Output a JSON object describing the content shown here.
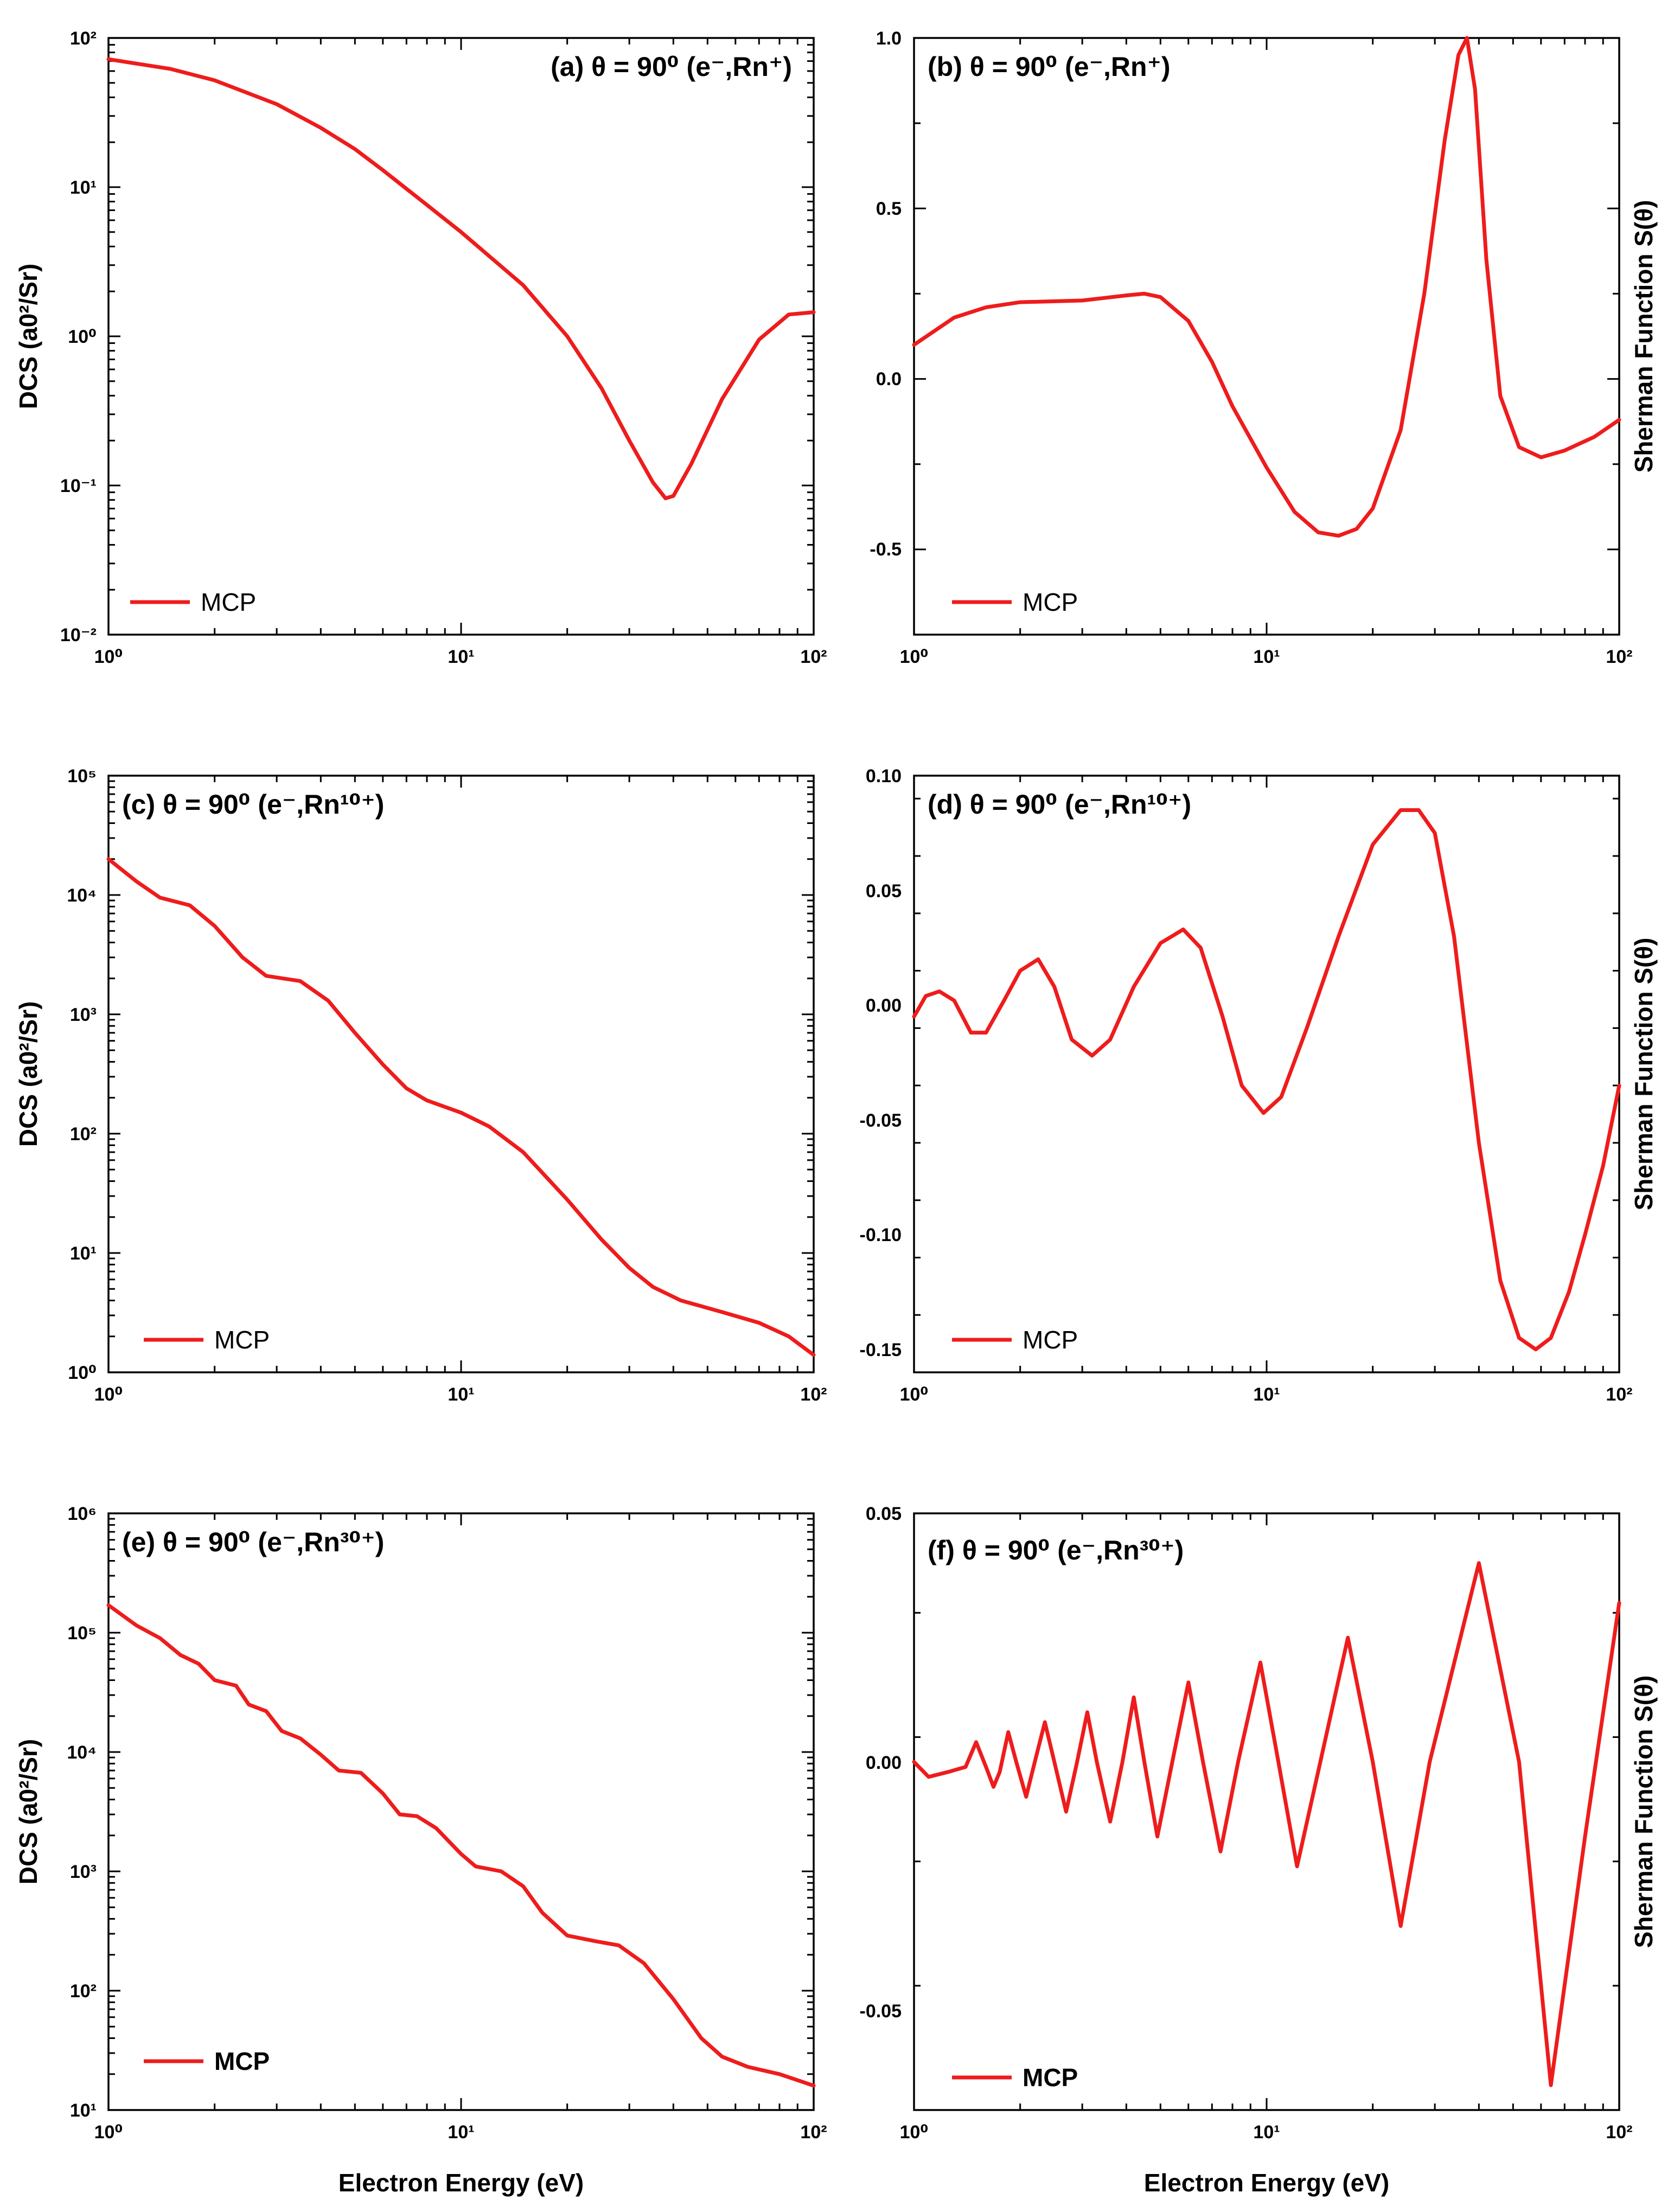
{
  "figure": {
    "x_axis_title": "Electron Energy (eV)",
    "dcs_axis_title": "DCS (a0²/Sr)",
    "sherman_axis_title": "Sherman Function S(θ)",
    "curve_color": "#ee1c1c"
  },
  "chart_data": [
    {
      "type": "line",
      "id": "a",
      "title": "(a) θ = 90⁰ (e⁻,Rn⁺)",
      "xlabel": "",
      "ylabel": "DCS (a0²/Sr)",
      "x_scale": "log",
      "y_scale": "log",
      "xlim": [
        1,
        100
      ],
      "ylim": [
        0.01,
        100
      ],
      "x_ticks": [
        1,
        10,
        100
      ],
      "x_tick_labels": [
        "10⁰",
        "10¹",
        "10²"
      ],
      "y_ticks": [
        0.01,
        0.1,
        1,
        10,
        100
      ],
      "y_tick_labels": [
        "10⁻²",
        "10⁻¹",
        "10⁰",
        "10¹",
        "10²"
      ],
      "legend": "MCP",
      "legend_position": "bottom-left",
      "series": [
        {
          "name": "MCP",
          "points": [
            [
              1,
              72
            ],
            [
              1.5,
              62
            ],
            [
              2,
              52
            ],
            [
              3,
              36
            ],
            [
              4,
              25
            ],
            [
              5,
              18
            ],
            [
              6,
              13
            ],
            [
              8,
              7.6
            ],
            [
              10,
              5.0
            ],
            [
              15,
              2.2
            ],
            [
              20,
              1.0
            ],
            [
              25,
              0.45
            ],
            [
              30,
              0.2
            ],
            [
              35,
              0.105
            ],
            [
              38,
              0.082
            ],
            [
              40,
              0.085
            ],
            [
              45,
              0.14
            ],
            [
              55,
              0.38
            ],
            [
              70,
              0.95
            ],
            [
              85,
              1.4
            ],
            [
              100,
              1.45
            ]
          ]
        }
      ]
    },
    {
      "type": "line",
      "id": "b",
      "title": "(b) θ = 90⁰ (e⁻,Rn⁺)",
      "xlabel": "",
      "ylabel": "Sherman Function S(θ)",
      "x_scale": "log",
      "y_scale": "linear",
      "xlim": [
        1,
        100
      ],
      "ylim": [
        -0.75,
        1.0
      ],
      "x_ticks": [
        1,
        10,
        100
      ],
      "x_tick_labels": [
        "10⁰",
        "10¹",
        "10²"
      ],
      "y_ticks": [
        -0.5,
        0,
        0.5,
        1.0
      ],
      "y_tick_labels": [
        "-0.5",
        "0.0",
        "0.5",
        "1.0"
      ],
      "legend": "MCP",
      "legend_position": "bottom-left",
      "series": [
        {
          "name": "MCP",
          "points": [
            [
              1,
              0.1
            ],
            [
              1.3,
              0.18
            ],
            [
              1.6,
              0.21
            ],
            [
              2,
              0.225
            ],
            [
              3,
              0.23
            ],
            [
              4,
              0.245
            ],
            [
              4.5,
              0.25
            ],
            [
              5,
              0.24
            ],
            [
              6,
              0.17
            ],
            [
              7,
              0.05
            ],
            [
              8,
              -0.08
            ],
            [
              10,
              -0.26
            ],
            [
              12,
              -0.39
            ],
            [
              14,
              -0.45
            ],
            [
              16,
              -0.46
            ],
            [
              18,
              -0.44
            ],
            [
              20,
              -0.38
            ],
            [
              24,
              -0.15
            ],
            [
              28,
              0.25
            ],
            [
              32,
              0.7
            ],
            [
              35,
              0.95
            ],
            [
              37,
              1.0
            ],
            [
              39,
              0.85
            ],
            [
              42,
              0.35
            ],
            [
              46,
              -0.05
            ],
            [
              52,
              -0.2
            ],
            [
              60,
              -0.23
            ],
            [
              70,
              -0.21
            ],
            [
              85,
              -0.17
            ],
            [
              100,
              -0.12
            ]
          ]
        }
      ]
    },
    {
      "type": "line",
      "id": "c",
      "title": "(c) θ = 90⁰ (e⁻,Rn¹⁰⁺)",
      "xlabel": "",
      "ylabel": "DCS (a0²/Sr)",
      "x_scale": "log",
      "y_scale": "log",
      "xlim": [
        1,
        100
      ],
      "ylim": [
        1,
        100000
      ],
      "x_ticks": [
        1,
        10,
        100
      ],
      "x_tick_labels": [
        "10⁰",
        "10¹",
        "10²"
      ],
      "y_ticks": [
        1,
        10,
        100,
        1000,
        10000,
        100000
      ],
      "y_tick_labels": [
        "10⁰",
        "10¹",
        "10²",
        "10³",
        "10⁴",
        "10⁵"
      ],
      "legend": "MCP",
      "legend_position": "bottom-left",
      "series": [
        {
          "name": "MCP",
          "points": [
            [
              1,
              20000
            ],
            [
              1.2,
              13000
            ],
            [
              1.4,
              9500
            ],
            [
              1.7,
              8200
            ],
            [
              2,
              5500
            ],
            [
              2.4,
              3000
            ],
            [
              2.8,
              2100
            ],
            [
              3.5,
              1900
            ],
            [
              4.2,
              1300
            ],
            [
              5,
              700
            ],
            [
              6,
              380
            ],
            [
              7,
              240
            ],
            [
              8,
              190
            ],
            [
              10,
              150
            ],
            [
              12,
              115
            ],
            [
              15,
              70
            ],
            [
              20,
              28
            ],
            [
              25,
              13
            ],
            [
              30,
              7.5
            ],
            [
              35,
              5.2
            ],
            [
              42,
              4
            ],
            [
              55,
              3.2
            ],
            [
              70,
              2.6
            ],
            [
              85,
              2
            ],
            [
              100,
              1.4
            ]
          ]
        }
      ]
    },
    {
      "type": "line",
      "id": "d",
      "title": "(d) θ = 90⁰ (e⁻,Rn¹⁰⁺)",
      "xlabel": "",
      "ylabel": "Sherman Function S(θ)",
      "x_scale": "log",
      "y_scale": "linear",
      "xlim": [
        1,
        100
      ],
      "ylim": [
        -0.16,
        0.1
      ],
      "x_ticks": [
        1,
        10,
        100
      ],
      "x_tick_labels": [
        "10⁰",
        "10¹",
        "10²"
      ],
      "y_ticks": [
        -0.15,
        -0.1,
        -0.05,
        0,
        0.05,
        0.1
      ],
      "y_tick_labels": [
        "-0.15",
        "-0.10",
        "-0.05",
        "0.00",
        "0.05",
        "0.10"
      ],
      "legend": "MCP",
      "legend_position": "bottom-left",
      "series": [
        {
          "name": "MCP",
          "points": [
            [
              1,
              -0.005
            ],
            [
              1.08,
              0.004
            ],
            [
              1.18,
              0.006
            ],
            [
              1.3,
              0.002
            ],
            [
              1.45,
              -0.012
            ],
            [
              1.6,
              -0.012
            ],
            [
              1.8,
              0.002
            ],
            [
              2,
              0.015
            ],
            [
              2.25,
              0.02
            ],
            [
              2.5,
              0.008
            ],
            [
              2.8,
              -0.015
            ],
            [
              3.2,
              -0.022
            ],
            [
              3.6,
              -0.015
            ],
            [
              4.2,
              0.008
            ],
            [
              5,
              0.027
            ],
            [
              5.8,
              0.033
            ],
            [
              6.5,
              0.025
            ],
            [
              7.5,
              -0.005
            ],
            [
              8.5,
              -0.035
            ],
            [
              9.8,
              -0.047
            ],
            [
              11,
              -0.04
            ],
            [
              13,
              -0.01
            ],
            [
              16,
              0.03
            ],
            [
              20,
              0.07
            ],
            [
              24,
              0.085
            ],
            [
              27,
              0.085
            ],
            [
              30,
              0.075
            ],
            [
              34,
              0.03
            ],
            [
              40,
              -0.06
            ],
            [
              46,
              -0.12
            ],
            [
              52,
              -0.145
            ],
            [
              58,
              -0.15
            ],
            [
              64,
              -0.145
            ],
            [
              72,
              -0.125
            ],
            [
              80,
              -0.1
            ],
            [
              90,
              -0.07
            ],
            [
              100,
              -0.035
            ]
          ]
        }
      ]
    },
    {
      "type": "line",
      "id": "e",
      "title": "(e) θ = 90⁰ (e⁻,Rn³⁰⁺)",
      "xlabel": "Electron Energy (eV)",
      "ylabel": "DCS (a0²/Sr)",
      "x_scale": "log",
      "y_scale": "log",
      "xlim": [
        1,
        100
      ],
      "ylim": [
        10,
        1000000
      ],
      "x_ticks": [
        1,
        10,
        100
      ],
      "x_tick_labels": [
        "10⁰",
        "10¹",
        "10²"
      ],
      "y_ticks": [
        10,
        100,
        1000,
        10000,
        100000,
        1000000
      ],
      "y_tick_labels": [
        "10¹",
        "10²",
        "10³",
        "10⁴",
        "10⁵",
        "10⁶"
      ],
      "legend": "MCP",
      "legend_position": "bottom-left",
      "series": [
        {
          "name": "MCP",
          "points": [
            [
              1,
              170000
            ],
            [
              1.2,
              115000
            ],
            [
              1.4,
              90000
            ],
            [
              1.6,
              65000
            ],
            [
              1.8,
              55000
            ],
            [
              2,
              40000
            ],
            [
              2.3,
              36000
            ],
            [
              2.5,
              25000
            ],
            [
              2.8,
              22000
            ],
            [
              3.1,
              15000
            ],
            [
              3.5,
              13000
            ],
            [
              4,
              9500
            ],
            [
              4.5,
              7000
            ],
            [
              5.2,
              6700
            ],
            [
              6,
              4500
            ],
            [
              6.7,
              3000
            ],
            [
              7.5,
              2900
            ],
            [
              8.5,
              2300
            ],
            [
              10,
              1400
            ],
            [
              11,
              1100
            ],
            [
              13,
              1000
            ],
            [
              15,
              750
            ],
            [
              17,
              450
            ],
            [
              20,
              290
            ],
            [
              24,
              260
            ],
            [
              28,
              240
            ],
            [
              33,
              170
            ],
            [
              40,
              85
            ],
            [
              48,
              40
            ],
            [
              55,
              28
            ],
            [
              65,
              23
            ],
            [
              80,
              20
            ],
            [
              100,
              16
            ]
          ]
        }
      ]
    },
    {
      "type": "line",
      "id": "f",
      "title": "(f) θ = 90⁰ (e⁻,Rn³⁰⁺)",
      "xlabel": "Electron Energy (eV)",
      "ylabel": "Sherman Function S(θ)",
      "x_scale": "log",
      "y_scale": "linear",
      "xlim": [
        1,
        100
      ],
      "ylim": [
        -0.07,
        0.05
      ],
      "x_ticks": [
        1,
        10,
        100
      ],
      "x_tick_labels": [
        "10⁰",
        "10¹",
        "10²"
      ],
      "y_ticks": [
        -0.05,
        0,
        0.05
      ],
      "y_tick_labels": [
        "-0.05",
        "0.00",
        "0.05"
      ],
      "legend": "MCP",
      "legend_position": "bottom-left",
      "series": [
        {
          "name": "MCP",
          "points": [
            [
              1,
              0.0
            ],
            [
              1.1,
              -0.003
            ],
            [
              1.25,
              -0.002
            ],
            [
              1.4,
              -0.001
            ],
            [
              1.5,
              0.004
            ],
            [
              1.6,
              -0.001
            ],
            [
              1.68,
              -0.005
            ],
            [
              1.75,
              -0.002
            ],
            [
              1.85,
              0.006
            ],
            [
              1.95,
              0.0
            ],
            [
              2.08,
              -0.007
            ],
            [
              2.2,
              0.0
            ],
            [
              2.35,
              0.008
            ],
            [
              2.5,
              0.0
            ],
            [
              2.7,
              -0.01
            ],
            [
              2.9,
              0.0
            ],
            [
              3.1,
              0.01
            ],
            [
              3.3,
              0.0
            ],
            [
              3.6,
              -0.012
            ],
            [
              3.9,
              0.0
            ],
            [
              4.2,
              0.013
            ],
            [
              4.5,
              0.0
            ],
            [
              4.9,
              -0.015
            ],
            [
              5.4,
              0.0
            ],
            [
              6,
              0.016
            ],
            [
              6.6,
              0.0
            ],
            [
              7.4,
              -0.018
            ],
            [
              8.3,
              0.0
            ],
            [
              9.6,
              0.02
            ],
            [
              10.8,
              0.0
            ],
            [
              12.2,
              -0.021
            ],
            [
              14.2,
              0.0
            ],
            [
              17,
              0.025
            ],
            [
              20,
              0.0
            ],
            [
              24,
              -0.033
            ],
            [
              29,
              0.0
            ],
            [
              40,
              0.04
            ],
            [
              52,
              0.0
            ],
            [
              64,
              -0.065
            ],
            [
              80,
              -0.015
            ],
            [
              100,
              0.032
            ]
          ]
        }
      ]
    }
  ]
}
